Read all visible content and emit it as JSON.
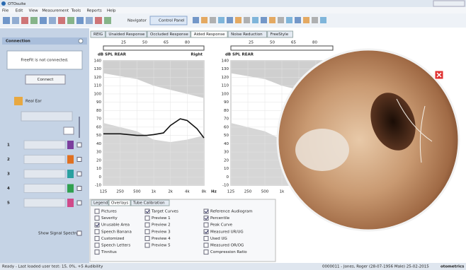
{
  "window": {
    "title": "OTOsuite"
  },
  "menu": [
    "File",
    "Edit",
    "View",
    "Measurement",
    "Tools",
    "Reports",
    "Help"
  ],
  "toolbar": [
    "Navigator",
    "Control Panel"
  ],
  "tabs": {
    "items": [
      "REIG",
      "Unaided Response",
      "Occluded Response",
      "Aided Response",
      "Noise Reduction",
      "FreeStyle"
    ],
    "active": 3
  },
  "connection": {
    "title": "Connection",
    "status": "FreeFit is not connected.",
    "button": "Connect",
    "real_ear": "Real Ear",
    "rows": [
      "1",
      "2",
      "3",
      "4",
      "5"
    ],
    "row_colors": [
      "#7b3f9e",
      "#e07020",
      "#2aa0a0",
      "#30a050",
      "#d04a8a"
    ],
    "show_signal": "Show Signal Spectrum"
  },
  "chart": {
    "label": "dB SPL REAR",
    "side": "Right",
    "top_ticks": [
      "25",
      "50",
      "65",
      "80"
    ],
    "ylim": [
      -10,
      140
    ],
    "yticks": [
      140,
      130,
      120,
      110,
      100,
      90,
      80,
      70,
      60,
      50,
      40,
      30,
      20,
      10,
      0,
      -10
    ],
    "xlim": [
      125,
      8000
    ],
    "log_x": true,
    "xticks": [
      125,
      250,
      500,
      {
        "value": 1000,
        "label": "1k"
      },
      {
        "value": 2000,
        "label": "2k"
      },
      {
        "value": 4000,
        "label": "4k"
      },
      {
        "value": 8000,
        "label": "8k"
      }
    ],
    "x_unit": "Hz",
    "grid": true,
    "curve_color": "#111",
    "x": [
      125,
      250,
      500,
      750,
      1000,
      1500,
      2000,
      3000,
      4000,
      6000,
      8000
    ],
    "values": [
      52,
      52,
      50,
      50,
      51,
      53,
      62,
      70,
      68,
      58,
      47
    ]
  },
  "right_chart": {
    "label": "dB SPL REAR"
  },
  "overlay_tabs": {
    "items": [
      "Legend",
      "Overlays",
      "Tube Calibration"
    ],
    "active": 1
  },
  "overlays": [
    [
      {
        "label": "Pictures",
        "checked": false
      },
      {
        "label": "Severity",
        "checked": false
      },
      {
        "label": "Unusable Area",
        "checked": true
      },
      {
        "label": "Speech Banana",
        "checked": false
      },
      {
        "label": "Customized",
        "checked": false
      },
      {
        "label": "Speech Letters",
        "checked": false
      },
      {
        "label": "Tinnitus",
        "checked": false
      }
    ],
    [
      {
        "label": "Target Curves",
        "checked": true
      },
      {
        "label": "Preview 1",
        "checked": false
      },
      {
        "label": "Preview 2",
        "checked": false
      },
      {
        "label": "Preview 3",
        "checked": false
      },
      {
        "label": "Preview 4",
        "checked": false
      },
      {
        "label": "Preview 5",
        "checked": false
      }
    ],
    [
      {
        "label": "Reference Audiogram",
        "checked": true
      },
      {
        "label": "Percentile",
        "checked": true
      },
      {
        "label": "Peak Curve",
        "checked": false
      },
      {
        "label": "Measured UR/UG",
        "checked": true
      },
      {
        "label": "Used UG",
        "checked": false
      },
      {
        "label": "Measured OR/OG",
        "checked": false
      },
      {
        "label": "Compression Ratio",
        "checked": false
      }
    ]
  ],
  "status": {
    "left": "Ready - Last loaded user test: 15, 0%, +5 Audibility",
    "right": "0000011 - Jones, Roger (28-07-1956 Male) 25-02-2015",
    "brand": "otometrics"
  }
}
